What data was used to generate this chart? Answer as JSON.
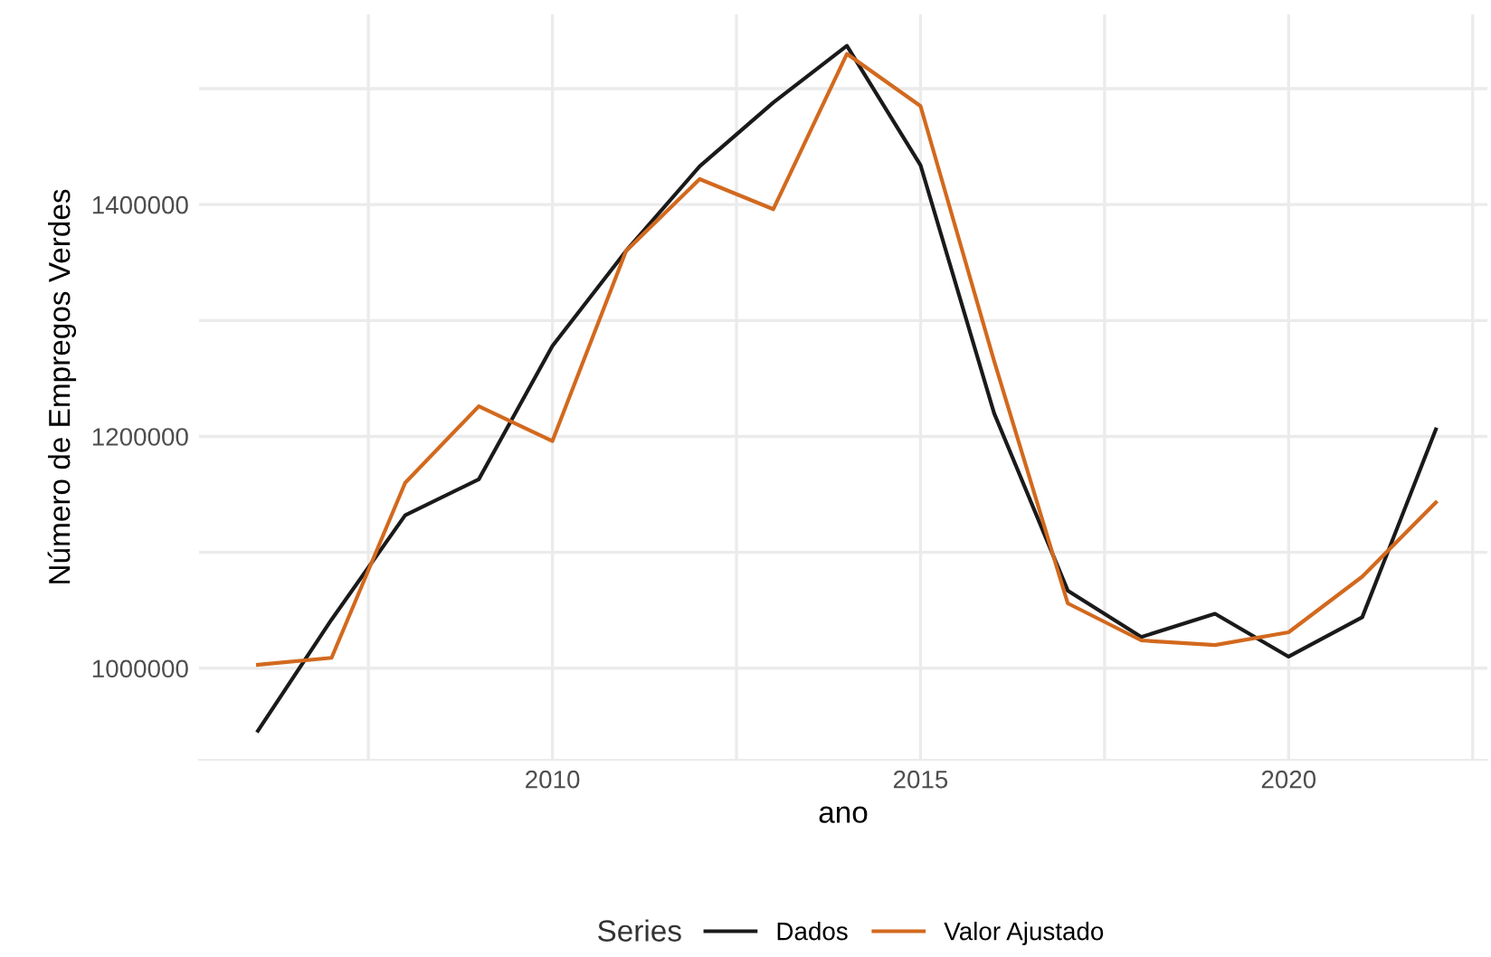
{
  "chart_data": {
    "type": "line",
    "xlabel": "ano",
    "ylabel": "Número de Empregos Verdes",
    "legend_title": "Series",
    "legend": "bottom",
    "grid": true,
    "x": [
      2006,
      2007,
      2008,
      2009,
      2010,
      2011,
      2012,
      2013,
      2014,
      2015,
      2016,
      2017,
      2018,
      2019,
      2020,
      2021,
      2022
    ],
    "series": [
      {
        "name": "Dados",
        "color": "#1a1a1a",
        "values": [
          946000,
          1042000,
          1132000,
          1163000,
          1278000,
          1360000,
          1433000,
          1488000,
          1537000,
          1434000,
          1220000,
          1067000,
          1027000,
          1047000,
          1010000,
          1044000,
          1206000
        ]
      },
      {
        "name": "Valor Ajustado",
        "color": "#d2691e",
        "values": [
          1003000,
          1009000,
          1160000,
          1226000,
          1196000,
          1360000,
          1422000,
          1396000,
          1530000,
          1485000,
          1265000,
          1056000,
          1024000,
          1020000,
          1031000,
          1079000,
          1143000
        ]
      }
    ],
    "xlim": [
      2005.2,
      2022.7
    ],
    "ylim": [
      921000,
      1564000
    ],
    "xticks": [
      {
        "value": 2007.5,
        "label": null
      },
      2010,
      {
        "value": 2012.5,
        "label": null
      },
      2015,
      {
        "value": 2017.5,
        "label": null
      },
      2020,
      {
        "value": 2022.5,
        "label": null
      }
    ],
    "yticks": [
      1000000,
      {
        "value": 1100000,
        "label": null
      },
      1200000,
      {
        "value": 1300000,
        "label": null
      },
      1400000,
      {
        "value": 1500000,
        "label": null
      }
    ]
  }
}
